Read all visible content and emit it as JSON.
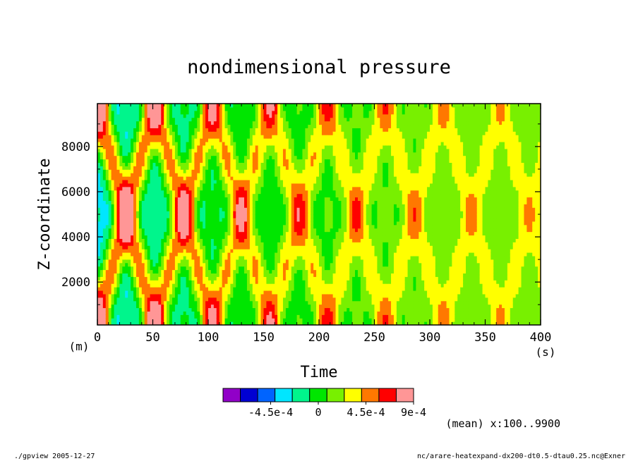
{
  "chart_data": {
    "type": "heatmap",
    "title": "nondimensional pressure",
    "xlabel": "Time",
    "ylabel": "Z-coordinate",
    "x_unit": "(s)",
    "y_unit": "(m)",
    "xlim": [
      0,
      400
    ],
    "ylim": [
      100,
      9900
    ],
    "x_ticks": [
      0,
      50,
      100,
      150,
      200,
      250,
      300,
      350,
      400
    ],
    "y_ticks": [
      2000,
      4000,
      6000,
      8000
    ],
    "colorbar": {
      "levels": [
        -0.0009,
        -0.00075,
        -0.0006,
        -0.00045,
        -0.0003,
        -0.00015,
        0,
        0.00015,
        0.0003,
        0.00045,
        0.0006,
        0.00075,
        0.0009
      ],
      "colors": [
        "#9100c8",
        "#0000d2",
        "#0064ff",
        "#00e6ff",
        "#00f58c",
        "#00e600",
        "#78f000",
        "#ffff00",
        "#ff7800",
        "#ff0000",
        "#ff9696"
      ],
      "tick_labels": [
        "-4.5e-4",
        "0",
        "4.5e-4",
        "9e-4"
      ]
    },
    "annotation": "(mean) x:100..9900",
    "footer_left": "./gpview  2005-12-27",
    "footer_right": "nc/arare-heatexpand-dx200-dt0.5-dtau0.25.nc@Exner"
  }
}
